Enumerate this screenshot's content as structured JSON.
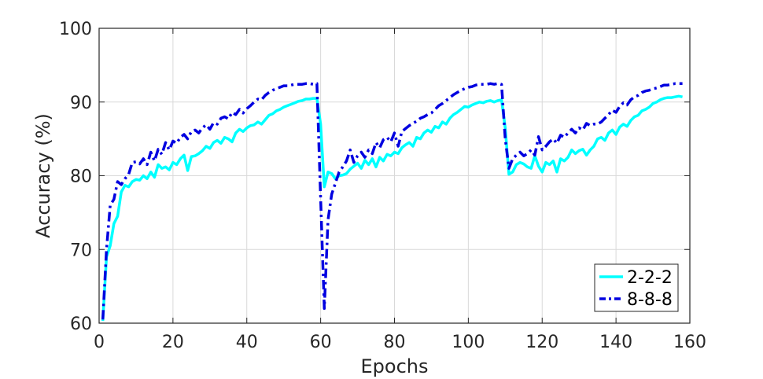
{
  "chart_data": {
    "type": "line",
    "title": "",
    "xlabel": "Epochs",
    "ylabel": "Accuracy (%)",
    "xlim": [
      0,
      160
    ],
    "ylim": [
      60,
      100
    ],
    "xticks": [
      0,
      20,
      40,
      60,
      80,
      100,
      120,
      140,
      160
    ],
    "yticks": [
      60,
      70,
      80,
      90,
      100
    ],
    "grid": true,
    "legend_position": "bottom-right",
    "series": [
      {
        "name": "2-2-2",
        "color": "#00ffff",
        "line_style": "solid",
        "points": [
          [
            1,
            60.3
          ],
          [
            2,
            69.0
          ],
          [
            3,
            70.5
          ],
          [
            4,
            73.5
          ],
          [
            5,
            74.5
          ],
          [
            6,
            77.8
          ],
          [
            7,
            78.7
          ],
          [
            8,
            78.5
          ],
          [
            9,
            79.2
          ],
          [
            10,
            79.5
          ],
          [
            11,
            79.4
          ],
          [
            12,
            80.0
          ],
          [
            13,
            79.6
          ],
          [
            14,
            80.5
          ],
          [
            15,
            79.8
          ],
          [
            16,
            81.5
          ],
          [
            17,
            81.0
          ],
          [
            18,
            81.2
          ],
          [
            19,
            80.8
          ],
          [
            20,
            81.8
          ],
          [
            21,
            81.5
          ],
          [
            22,
            82.3
          ],
          [
            23,
            82.8
          ],
          [
            24,
            80.7
          ],
          [
            25,
            82.6
          ],
          [
            26,
            82.7
          ],
          [
            27,
            83.0
          ],
          [
            28,
            83.4
          ],
          [
            29,
            84.0
          ],
          [
            30,
            83.7
          ],
          [
            31,
            84.5
          ],
          [
            32,
            84.8
          ],
          [
            33,
            84.4
          ],
          [
            34,
            85.2
          ],
          [
            35,
            85.0
          ],
          [
            36,
            84.6
          ],
          [
            37,
            85.8
          ],
          [
            38,
            86.3
          ],
          [
            39,
            86.0
          ],
          [
            40,
            86.5
          ],
          [
            41,
            86.8
          ],
          [
            42,
            86.9
          ],
          [
            43,
            87.3
          ],
          [
            44,
            87.0
          ],
          [
            45,
            87.6
          ],
          [
            46,
            88.2
          ],
          [
            47,
            88.4
          ],
          [
            48,
            88.8
          ],
          [
            49,
            89.0
          ],
          [
            50,
            89.3
          ],
          [
            51,
            89.5
          ],
          [
            52,
            89.7
          ],
          [
            53,
            89.9
          ],
          [
            54,
            90.1
          ],
          [
            55,
            90.2
          ],
          [
            56,
            90.4
          ],
          [
            57,
            90.4
          ],
          [
            58,
            90.5
          ],
          [
            59,
            90.5
          ],
          [
            60,
            87.0
          ],
          [
            61,
            78.5
          ],
          [
            62,
            80.5
          ],
          [
            63,
            80.3
          ],
          [
            64,
            79.6
          ],
          [
            65,
            80.0
          ],
          [
            66,
            80.1
          ],
          [
            67,
            80.3
          ],
          [
            68,
            80.9
          ],
          [
            69,
            81.3
          ],
          [
            70,
            81.7
          ],
          [
            71,
            81.0
          ],
          [
            72,
            82.1
          ],
          [
            73,
            81.5
          ],
          [
            74,
            82.3
          ],
          [
            75,
            81.2
          ],
          [
            76,
            82.5
          ],
          [
            77,
            82.0
          ],
          [
            78,
            82.9
          ],
          [
            79,
            82.7
          ],
          [
            80,
            83.2
          ],
          [
            81,
            83.0
          ],
          [
            82,
            83.8
          ],
          [
            83,
            84.2
          ],
          [
            84,
            84.5
          ],
          [
            85,
            84.0
          ],
          [
            86,
            85.2
          ],
          [
            87,
            85.0
          ],
          [
            88,
            85.8
          ],
          [
            89,
            86.2
          ],
          [
            90,
            85.9
          ],
          [
            91,
            86.7
          ],
          [
            92,
            86.5
          ],
          [
            93,
            87.3
          ],
          [
            94,
            87.0
          ],
          [
            95,
            87.8
          ],
          [
            96,
            88.3
          ],
          [
            97,
            88.6
          ],
          [
            98,
            89.0
          ],
          [
            99,
            89.4
          ],
          [
            100,
            89.3
          ],
          [
            101,
            89.6
          ],
          [
            102,
            89.8
          ],
          [
            103,
            90.0
          ],
          [
            104,
            89.9
          ],
          [
            105,
            90.1
          ],
          [
            106,
            90.2
          ],
          [
            107,
            90.0
          ],
          [
            108,
            90.2
          ],
          [
            109,
            90.3
          ],
          [
            110,
            86.5
          ],
          [
            111,
            80.2
          ],
          [
            112,
            80.5
          ],
          [
            113,
            81.5
          ],
          [
            114,
            81.8
          ],
          [
            115,
            81.6
          ],
          [
            116,
            81.2
          ],
          [
            117,
            81.0
          ],
          [
            118,
            82.7
          ],
          [
            119,
            81.3
          ],
          [
            120,
            80.5
          ],
          [
            121,
            81.8
          ],
          [
            122,
            81.5
          ],
          [
            123,
            82.0
          ],
          [
            124,
            80.5
          ],
          [
            125,
            82.3
          ],
          [
            126,
            82.0
          ],
          [
            127,
            82.5
          ],
          [
            128,
            83.5
          ],
          [
            129,
            83.0
          ],
          [
            130,
            83.4
          ],
          [
            131,
            83.6
          ],
          [
            132,
            82.8
          ],
          [
            133,
            83.5
          ],
          [
            134,
            84.0
          ],
          [
            135,
            85.0
          ],
          [
            136,
            85.2
          ],
          [
            137,
            84.8
          ],
          [
            138,
            85.8
          ],
          [
            139,
            86.2
          ],
          [
            140,
            85.6
          ],
          [
            141,
            86.6
          ],
          [
            142,
            87.0
          ],
          [
            143,
            86.7
          ],
          [
            144,
            87.5
          ],
          [
            145,
            88.0
          ],
          [
            146,
            88.2
          ],
          [
            147,
            88.8
          ],
          [
            148,
            89.0
          ],
          [
            149,
            89.3
          ],
          [
            150,
            89.8
          ],
          [
            151,
            90.0
          ],
          [
            152,
            90.3
          ],
          [
            153,
            90.5
          ],
          [
            154,
            90.6
          ],
          [
            155,
            90.6
          ],
          [
            156,
            90.7
          ],
          [
            157,
            90.8
          ],
          [
            158,
            90.7
          ]
        ]
      },
      {
        "name": "8-8-8",
        "color": "#0000e0",
        "line_style": "dashdot",
        "points": [
          [
            1,
            60.5
          ],
          [
            2,
            70.0
          ],
          [
            3,
            76.0
          ],
          [
            4,
            76.8
          ],
          [
            5,
            79.2
          ],
          [
            6,
            78.8
          ],
          [
            7,
            79.6
          ],
          [
            8,
            80.2
          ],
          [
            9,
            81.8
          ],
          [
            10,
            81.9
          ],
          [
            11,
            81.6
          ],
          [
            12,
            82.3
          ],
          [
            13,
            81.5
          ],
          [
            14,
            83.2
          ],
          [
            15,
            82.0
          ],
          [
            16,
            83.6
          ],
          [
            17,
            82.9
          ],
          [
            18,
            84.5
          ],
          [
            19,
            83.5
          ],
          [
            20,
            84.7
          ],
          [
            21,
            84.4
          ],
          [
            22,
            85.2
          ],
          [
            23,
            85.6
          ],
          [
            24,
            85.0
          ],
          [
            25,
            86.0
          ],
          [
            26,
            86.2
          ],
          [
            27,
            85.8
          ],
          [
            28,
            86.5
          ],
          [
            29,
            86.9
          ],
          [
            30,
            86.3
          ],
          [
            31,
            87.2
          ],
          [
            32,
            87.0
          ],
          [
            33,
            87.8
          ],
          [
            34,
            88.0
          ],
          [
            35,
            87.7
          ],
          [
            36,
            88.6
          ],
          [
            37,
            88.3
          ],
          [
            38,
            89.0
          ],
          [
            39,
            88.5
          ],
          [
            40,
            89.1
          ],
          [
            41,
            89.5
          ],
          [
            42,
            90.0
          ],
          [
            43,
            90.4
          ],
          [
            44,
            90.3
          ],
          [
            45,
            90.9
          ],
          [
            46,
            91.3
          ],
          [
            47,
            91.6
          ],
          [
            48,
            91.8
          ],
          [
            49,
            92.0
          ],
          [
            50,
            92.2
          ],
          [
            51,
            92.2
          ],
          [
            52,
            92.3
          ],
          [
            53,
            92.4
          ],
          [
            54,
            92.4
          ],
          [
            55,
            92.4
          ],
          [
            56,
            92.5
          ],
          [
            57,
            92.5
          ],
          [
            58,
            92.4
          ],
          [
            59,
            92.5
          ],
          [
            60,
            77.0
          ],
          [
            61,
            62.0
          ],
          [
            62,
            74.0
          ],
          [
            63,
            77.5
          ],
          [
            64,
            79.0
          ],
          [
            65,
            80.5
          ],
          [
            66,
            81.2
          ],
          [
            67,
            82.0
          ],
          [
            68,
            83.5
          ],
          [
            69,
            81.8
          ],
          [
            70,
            82.7
          ],
          [
            71,
            83.2
          ],
          [
            72,
            82.5
          ],
          [
            73,
            83.5
          ],
          [
            74,
            83.0
          ],
          [
            75,
            84.5
          ],
          [
            76,
            83.8
          ],
          [
            77,
            84.9
          ],
          [
            78,
            85.2
          ],
          [
            79,
            84.6
          ],
          [
            80,
            85.8
          ],
          [
            81,
            84.0
          ],
          [
            82,
            86.0
          ],
          [
            83,
            86.4
          ],
          [
            84,
            86.8
          ],
          [
            85,
            87.1
          ],
          [
            86,
            87.4
          ],
          [
            87,
            87.8
          ],
          [
            88,
            88.0
          ],
          [
            89,
            88.3
          ],
          [
            90,
            88.5
          ],
          [
            91,
            89.0
          ],
          [
            92,
            89.5
          ],
          [
            93,
            89.8
          ],
          [
            94,
            90.2
          ],
          [
            95,
            90.6
          ],
          [
            96,
            91.0
          ],
          [
            97,
            91.3
          ],
          [
            98,
            91.6
          ],
          [
            99,
            91.8
          ],
          [
            100,
            92.0
          ],
          [
            101,
            92.1
          ],
          [
            102,
            92.3
          ],
          [
            103,
            92.4
          ],
          [
            104,
            92.4
          ],
          [
            105,
            92.4
          ],
          [
            106,
            92.5
          ],
          [
            107,
            92.4
          ],
          [
            108,
            92.5
          ],
          [
            109,
            92.4
          ],
          [
            110,
            85.0
          ],
          [
            111,
            81.0
          ],
          [
            112,
            82.3
          ],
          [
            113,
            82.8
          ],
          [
            114,
            83.2
          ],
          [
            115,
            82.7
          ],
          [
            116,
            83.0
          ],
          [
            117,
            83.5
          ],
          [
            118,
            82.8
          ],
          [
            119,
            85.3
          ],
          [
            120,
            83.5
          ],
          [
            121,
            84.0
          ],
          [
            122,
            84.6
          ],
          [
            123,
            85.0
          ],
          [
            124,
            84.4
          ],
          [
            125,
            85.5
          ],
          [
            126,
            85.2
          ],
          [
            127,
            85.8
          ],
          [
            128,
            86.3
          ],
          [
            129,
            85.8
          ],
          [
            130,
            86.5
          ],
          [
            131,
            86.2
          ],
          [
            132,
            87.1
          ],
          [
            133,
            86.8
          ],
          [
            134,
            87.0
          ],
          [
            135,
            87.0
          ],
          [
            136,
            87.3
          ],
          [
            137,
            87.8
          ],
          [
            138,
            88.3
          ],
          [
            139,
            88.9
          ],
          [
            140,
            88.6
          ],
          [
            141,
            89.4
          ],
          [
            142,
            89.9
          ],
          [
            143,
            89.6
          ],
          [
            144,
            90.3
          ],
          [
            145,
            90.7
          ],
          [
            146,
            90.9
          ],
          [
            147,
            91.3
          ],
          [
            148,
            91.5
          ],
          [
            149,
            91.6
          ],
          [
            150,
            91.8
          ],
          [
            151,
            91.9
          ],
          [
            152,
            92.1
          ],
          [
            153,
            92.3
          ],
          [
            154,
            92.3
          ],
          [
            155,
            92.4
          ],
          [
            156,
            92.5
          ],
          [
            157,
            92.5
          ],
          [
            158,
            92.5
          ]
        ]
      }
    ]
  }
}
